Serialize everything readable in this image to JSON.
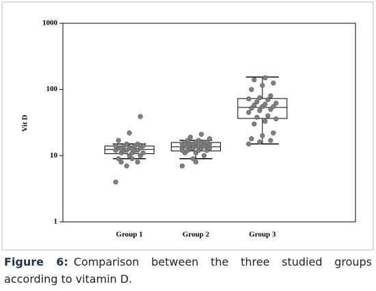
{
  "chart_data": {
    "type": "box",
    "ylabel": "Vit D",
    "log_scale": true,
    "ylim": [
      1,
      1000
    ],
    "yticks": [
      1,
      10,
      100,
      1000
    ],
    "categories": [
      "Group 1",
      "Group 2",
      "Group 3"
    ],
    "box_color": "#000000",
    "point_color": "#808080",
    "boxes": [
      {
        "min": 9,
        "q1": 10.7,
        "median": 12.4,
        "q3": 14,
        "max": 15,
        "points": [
          4,
          7,
          8,
          9,
          10,
          10,
          11,
          11,
          11,
          12,
          12,
          12,
          12,
          12,
          13,
          13,
          13,
          13,
          13,
          14,
          14,
          14,
          14,
          15,
          15,
          17,
          22,
          39,
          8,
          9
        ]
      },
      {
        "min": 9,
        "q1": 11.8,
        "median": 13.6,
        "q3": 15.8,
        "max": 17,
        "points": [
          7,
          9,
          10,
          11,
          11,
          12,
          12,
          12,
          13,
          13,
          13,
          13,
          13,
          14,
          14,
          14,
          14,
          14,
          14,
          15,
          15,
          15,
          15,
          15,
          16,
          16,
          16,
          16,
          17,
          17,
          18,
          19,
          21,
          12,
          13,
          14,
          15,
          8
        ]
      },
      {
        "min": 15,
        "q1": 36.5,
        "median": 53.6,
        "q3": 73,
        "max": 154,
        "points": [
          15,
          16,
          17,
          18,
          20,
          22,
          30,
          33,
          36,
          38,
          40,
          45,
          48,
          50,
          52,
          55,
          55,
          58,
          60,
          62,
          65,
          70,
          72,
          75,
          80,
          100,
          115,
          125,
          140,
          150
        ]
      }
    ]
  },
  "caption": {
    "label": "Figure 6:",
    "text": "Comparison between the three studied groups according to vitamin D."
  }
}
